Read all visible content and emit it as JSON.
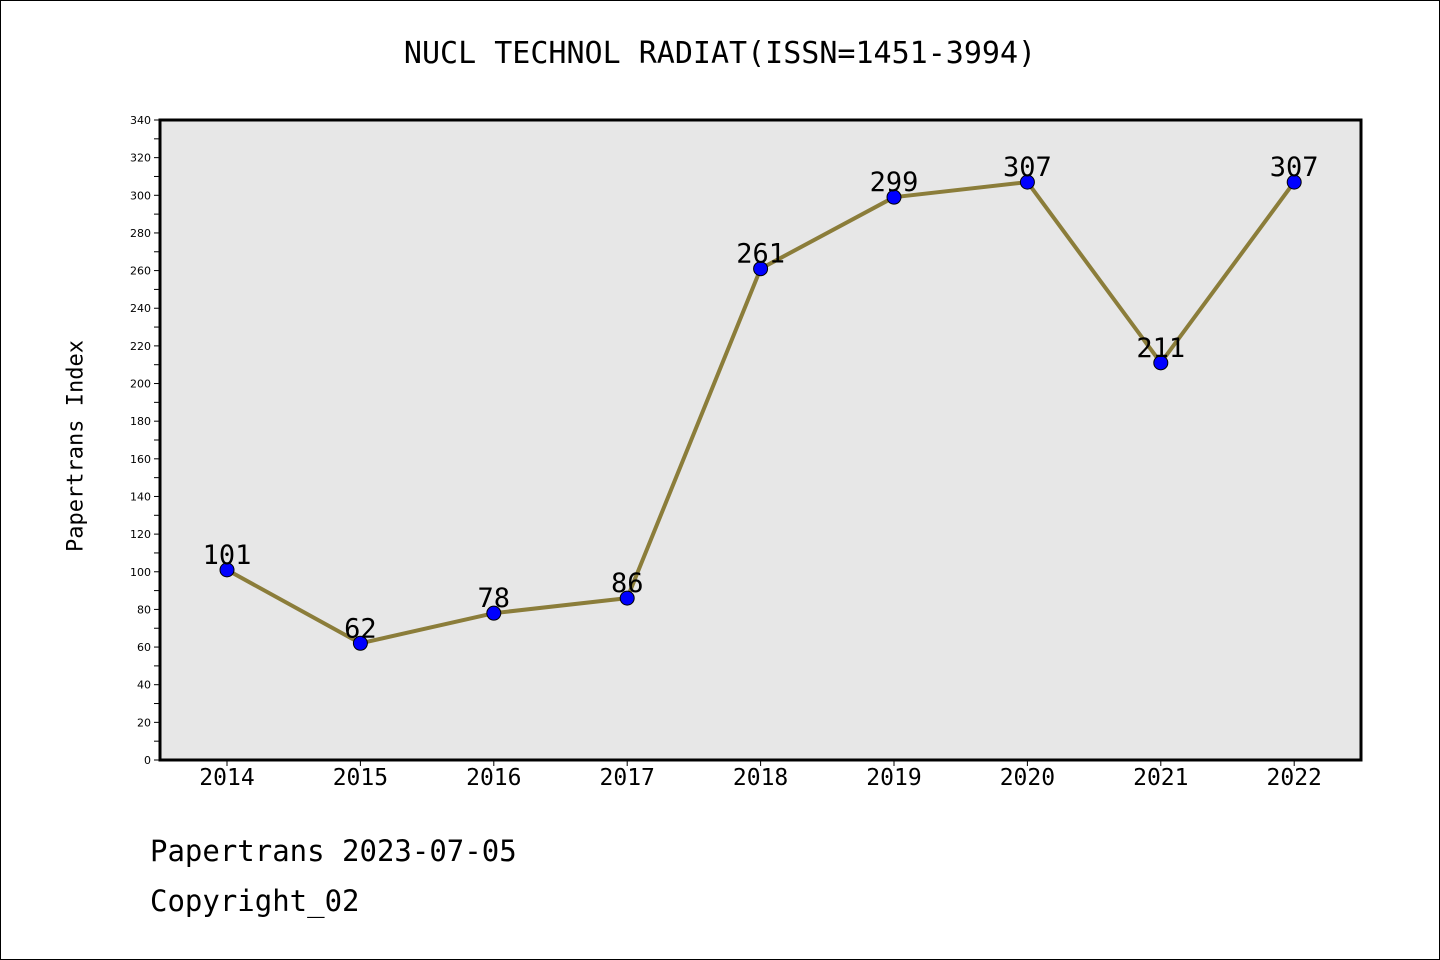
{
  "chart_data": {
    "type": "line",
    "title": "NUCL TECHNOL RADIAT(ISSN=1451-3994)",
    "xlabel": "",
    "ylabel": "Papertrans Index",
    "categories": [
      "2014",
      "2015",
      "2016",
      "2017",
      "2018",
      "2019",
      "2020",
      "2021",
      "2022"
    ],
    "values": [
      101,
      62,
      78,
      86,
      261,
      299,
      307,
      211,
      307
    ],
    "ylim": [
      0,
      340
    ],
    "yticks": [
      0,
      20,
      40,
      60,
      80,
      100,
      120,
      140,
      160,
      180,
      200,
      220,
      240,
      260,
      280,
      300,
      320,
      340
    ],
    "grid": false,
    "legend": "none",
    "colors": {
      "line": "#8B7D3A",
      "marker": "#0000FF",
      "plot_background": "#E7E7E7"
    }
  },
  "footer": {
    "date_text": "Papertrans 2023-07-05",
    "copyright_text": "Copyright_02"
  }
}
